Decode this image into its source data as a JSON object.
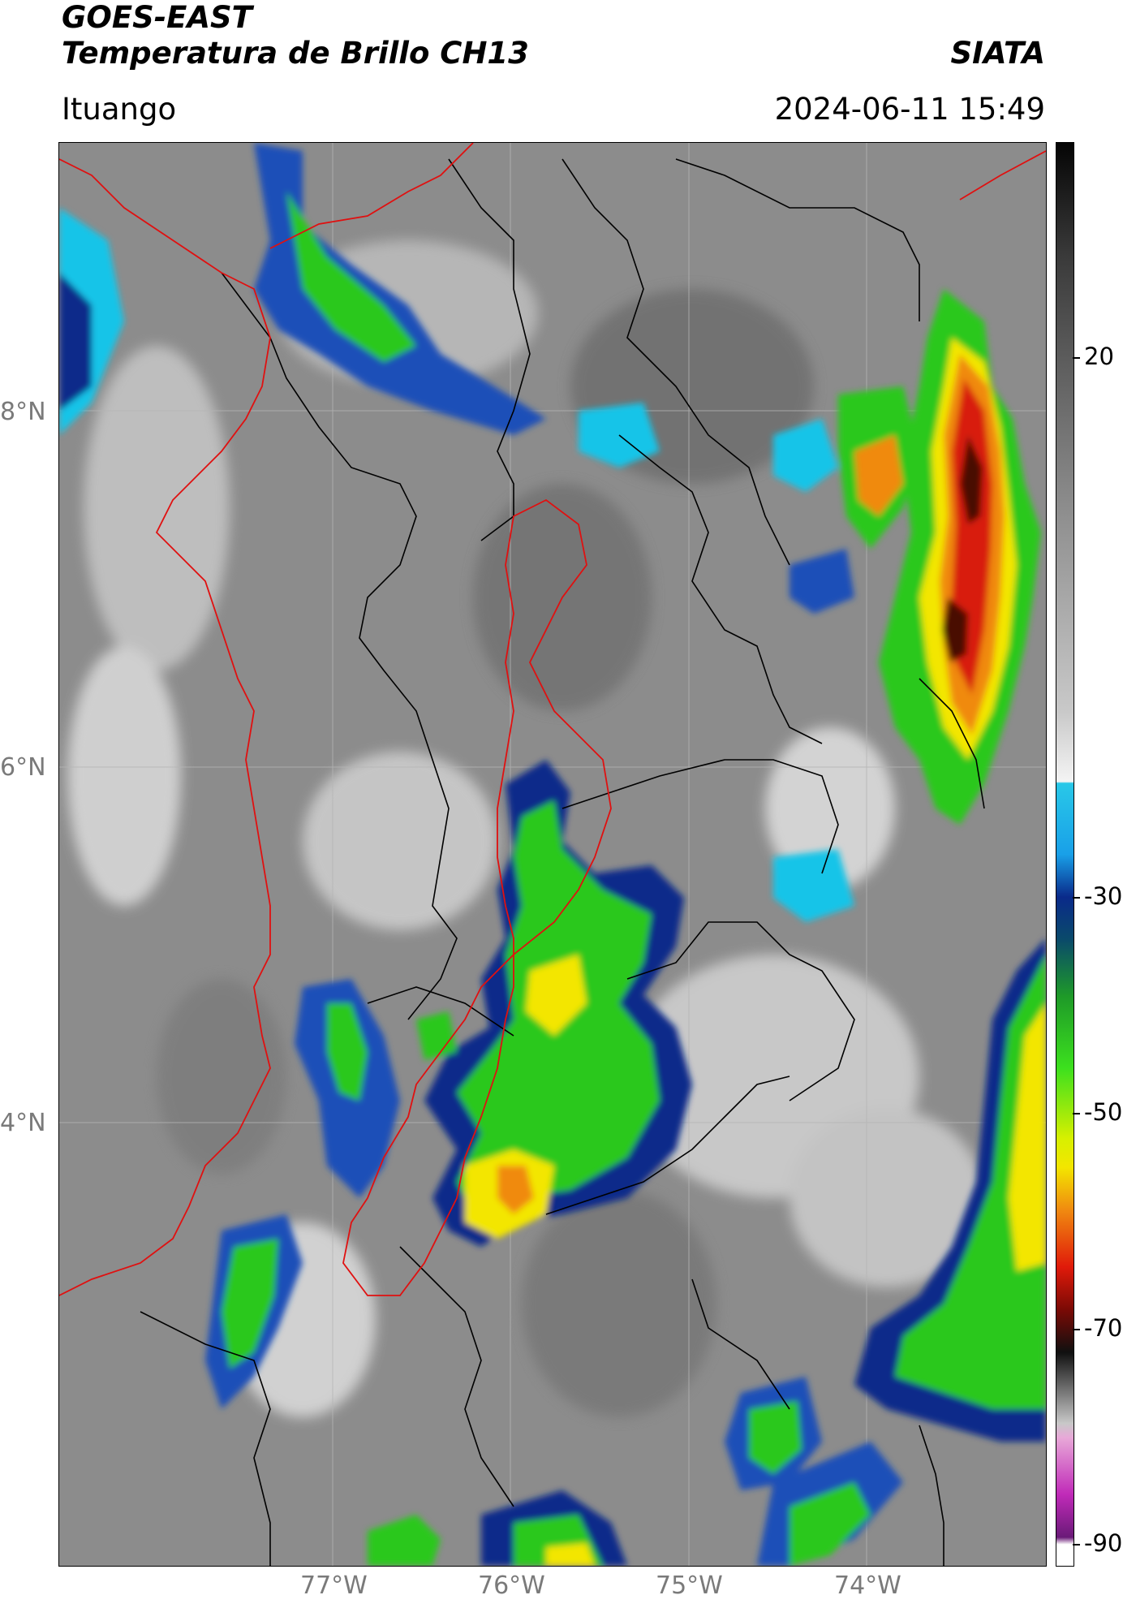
{
  "header": {
    "satellite": "GOES-EAST",
    "product": "Temperatura de Brillo CH13",
    "brand": "SIATA",
    "location": "Ituango",
    "timestamp": "2024-06-11 15:49"
  },
  "map": {
    "lat_labels": [
      "8°N",
      "6°N",
      "4°N"
    ],
    "lon_labels": [
      "77°W",
      "76°W",
      "75°W",
      "74°W"
    ],
    "grid": true,
    "overlays": [
      "department borders (black)",
      "coastline / basin outline (red)"
    ]
  },
  "colorbar": {
    "ticks": [
      "20",
      "-30",
      "-50",
      "-70",
      "-90"
    ],
    "range": [
      -90,
      60
    ],
    "colors": {
      "warm_gray": "#8a8a8a",
      "light": "#f0f0f0",
      "cyan": "#19c4e8",
      "blue": "#0a2a8a",
      "green": "#2cc81e",
      "yellow": "#f3e600",
      "orange": "#f08a10",
      "red": "#d81a0a",
      "black": "#101010",
      "magenta": "#c02ab8"
    }
  }
}
